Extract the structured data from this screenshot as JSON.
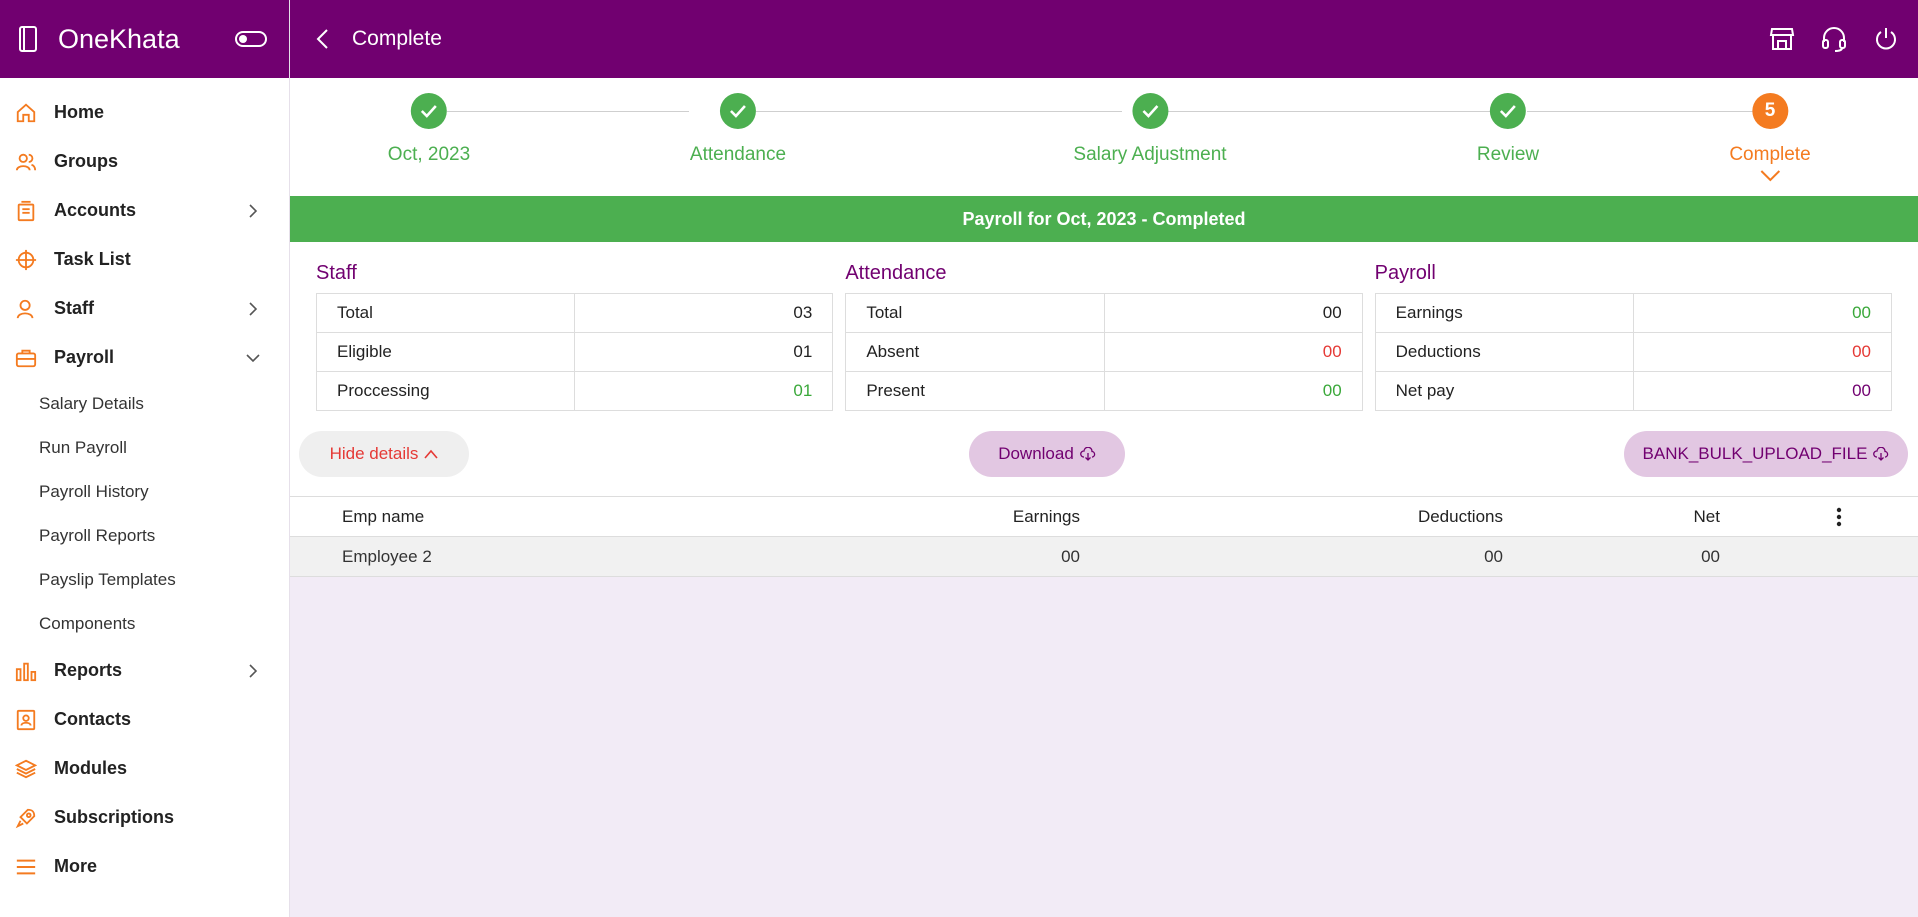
{
  "app": {
    "name": "OneKhata"
  },
  "colors": {
    "brand": "#710070",
    "accent": "#f47b20",
    "success": "#4caf50",
    "danger": "#e53935"
  },
  "sidebar": {
    "items": [
      {
        "label": "Home",
        "icon": "home-icon"
      },
      {
        "label": "Groups",
        "icon": "groups-icon"
      },
      {
        "label": "Accounts",
        "icon": "accounts-icon",
        "chevron": "right"
      },
      {
        "label": "Task List",
        "icon": "task-list-icon"
      },
      {
        "label": "Staff",
        "icon": "staff-icon",
        "chevron": "right"
      },
      {
        "label": "Payroll",
        "icon": "payroll-icon",
        "chevron": "down"
      }
    ],
    "payroll_sub": [
      "Salary Details",
      "Run Payroll",
      "Payroll History",
      "Payroll Reports",
      "Payslip Templates",
      "Components"
    ],
    "items_after": [
      {
        "label": "Reports",
        "icon": "reports-icon",
        "chevron": "right"
      },
      {
        "label": "Contacts",
        "icon": "contacts-icon"
      },
      {
        "label": "Modules",
        "icon": "modules-icon"
      },
      {
        "label": "Subscriptions",
        "icon": "subscriptions-icon"
      },
      {
        "label": "More",
        "icon": "more-icon"
      }
    ]
  },
  "topbar": {
    "title": "Complete",
    "icons": [
      "store-icon",
      "support-headset-icon",
      "power-icon"
    ]
  },
  "stepper": {
    "steps": [
      {
        "label": "Oct, 2023",
        "done": true
      },
      {
        "label": "Attendance",
        "done": true
      },
      {
        "label": "Salary Adjustment",
        "done": true
      },
      {
        "label": "Review",
        "done": true
      },
      {
        "label": "Complete",
        "number": "5",
        "active": true
      }
    ]
  },
  "banner": "Payroll for Oct, 2023 - Completed",
  "summary": {
    "staff": {
      "title": "Staff",
      "rows": [
        {
          "label": "Total",
          "value": "03"
        },
        {
          "label": "Eligible",
          "value": "01"
        },
        {
          "label": "Proccessing",
          "value": "01"
        }
      ]
    },
    "attendance": {
      "title": "Attendance",
      "rows": [
        {
          "label": "Total",
          "value": "00"
        },
        {
          "label": "Absent",
          "value": "00"
        },
        {
          "label": "Present",
          "value": "00"
        }
      ]
    },
    "payroll": {
      "title": "Payroll",
      "rows": [
        {
          "label": "Earnings",
          "value": "00"
        },
        {
          "label": "Deductions",
          "value": "00"
        },
        {
          "label": "Net pay",
          "value": "00"
        }
      ]
    }
  },
  "actions": {
    "hide": "Hide details",
    "download": "Download",
    "bank": "BANK_BULK_UPLOAD_FILE"
  },
  "table": {
    "headers": [
      "Emp name",
      "Earnings",
      "Deductions",
      "Net"
    ],
    "rows": [
      {
        "name": "Employee 2",
        "earnings": "00",
        "deductions": "00",
        "net": "00"
      }
    ]
  }
}
